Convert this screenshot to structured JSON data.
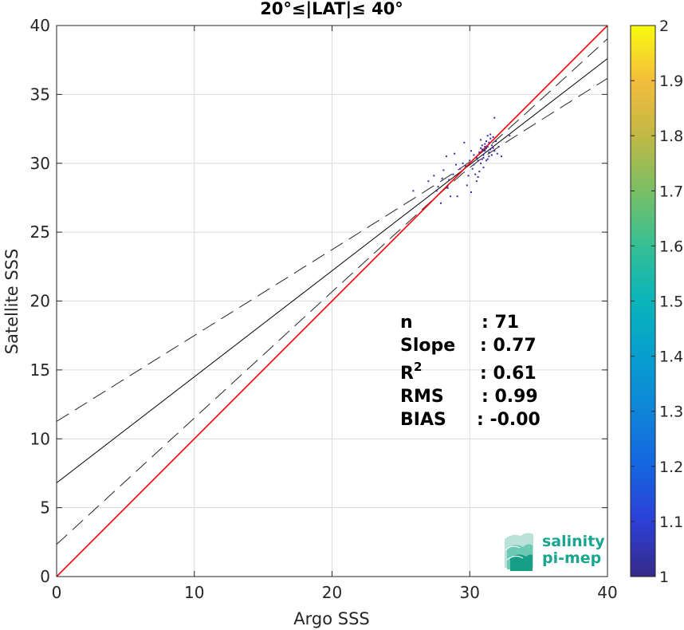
{
  "chart_data": {
    "type": "scatter",
    "title": "20°≤|LAT|≤ 40°",
    "xlabel": "Argo SSS",
    "ylabel": "Satellite SSS",
    "xlim": [
      0,
      40
    ],
    "ylim": [
      0,
      40
    ],
    "xticks": [
      "0",
      "10",
      "20",
      "30",
      "40"
    ],
    "yticks": [
      "0",
      "5",
      "10",
      "15",
      "20",
      "25",
      "30",
      "35",
      "40"
    ],
    "grid": true,
    "colorbar": {
      "range": [
        1,
        2
      ],
      "ticks": [
        "1",
        "1.1",
        "1.2",
        "1.3",
        "1.4",
        "1.5",
        "1.6",
        "1.7",
        "1.8",
        "1.9",
        "2"
      ],
      "colormap": "parula"
    },
    "lines": {
      "one_to_one": {
        "slope": 1,
        "intercept": 0,
        "color": "#ff0000"
      },
      "regression": {
        "slope": 0.77,
        "intercept": 6.8,
        "color": "#000000"
      }
    },
    "points": [
      [
        25.9,
        28.0
      ],
      [
        27.0,
        28.7
      ],
      [
        27.4,
        29.1
      ],
      [
        27.6,
        28.0
      ],
      [
        27.7,
        28.3
      ],
      [
        27.9,
        27.1
      ],
      [
        28.0,
        28.9
      ],
      [
        28.1,
        29.5
      ],
      [
        28.3,
        30.5
      ],
      [
        28.4,
        28.2
      ],
      [
        28.5,
        28.8
      ],
      [
        28.6,
        27.6
      ],
      [
        28.8,
        29.2
      ],
      [
        29.0,
        29.9
      ],
      [
        29.1,
        27.6
      ],
      [
        29.3,
        29.6
      ],
      [
        29.5,
        30.0
      ],
      [
        29.6,
        31.5
      ],
      [
        29.8,
        28.4
      ],
      [
        29.9,
        29.1
      ],
      [
        30.0,
        30.2
      ],
      [
        30.1,
        27.9
      ],
      [
        30.2,
        29.6
      ],
      [
        30.3,
        30.6
      ],
      [
        30.4,
        29.2
      ],
      [
        30.5,
        30.4
      ],
      [
        30.5,
        28.7
      ],
      [
        30.6,
        29.0
      ],
      [
        30.7,
        30.8
      ],
      [
        30.7,
        29.4
      ],
      [
        30.8,
        31.1
      ],
      [
        30.8,
        30.0
      ],
      [
        30.9,
        31.3
      ],
      [
        30.9,
        30.3
      ],
      [
        31.0,
        31.0
      ],
      [
        31.0,
        30.6
      ],
      [
        31.0,
        29.7
      ],
      [
        31.1,
        31.4
      ],
      [
        31.1,
        30.9
      ],
      [
        31.2,
        31.6
      ],
      [
        31.2,
        30.2
      ],
      [
        31.3,
        31.2
      ],
      [
        31.3,
        32.0
      ],
      [
        31.4,
        30.8
      ],
      [
        31.4,
        31.5
      ],
      [
        31.5,
        32.1
      ],
      [
        31.5,
        31.0
      ],
      [
        31.6,
        30.6
      ],
      [
        31.6,
        31.3
      ],
      [
        31.7,
        31.9
      ],
      [
        31.7,
        31.1
      ],
      [
        31.8,
        33.3
      ],
      [
        31.8,
        30.9
      ],
      [
        31.9,
        31.6
      ],
      [
        32.0,
        30.7
      ],
      [
        32.1,
        31.2
      ],
      [
        32.3,
        30.5
      ],
      [
        32.9,
        32.0
      ],
      [
        30.9,
        31.0
      ],
      [
        31.1,
        31.2
      ],
      [
        30.6,
        30.2
      ],
      [
        31.2,
        31.1
      ],
      [
        31.4,
        30.5
      ],
      [
        30.3,
        29.9
      ],
      [
        29.7,
        29.8
      ],
      [
        31.0,
        30.4
      ],
      [
        31.5,
        31.8
      ],
      [
        30.8,
        31.7
      ],
      [
        28.9,
        30.7
      ],
      [
        30.1,
        30.9
      ],
      [
        31.3,
        30.3
      ]
    ],
    "point_color": "#3a2aa8",
    "point_value": 1
  },
  "stats": {
    "rows": [
      {
        "label": "n",
        "value": ": 71"
      },
      {
        "label": "Slope",
        "value": ": 0.77"
      },
      {
        "label": "R",
        "sup": "2",
        "value": ": 0.61"
      },
      {
        "label": "RMS",
        "value": ": 0.99"
      },
      {
        "label": "BIAS",
        "value": ": -0.00"
      }
    ]
  },
  "logo": {
    "line1": "salinity",
    "line2": "pi-mep"
  }
}
